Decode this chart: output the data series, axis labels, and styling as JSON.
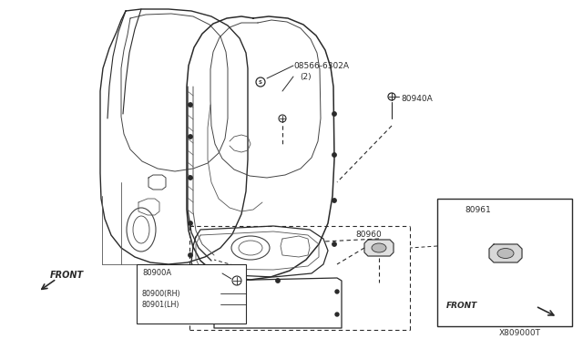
{
  "bg_color": "#ffffff",
  "fig_width": 6.4,
  "fig_height": 3.72,
  "dpi": 100,
  "line_color": "#2a2a2a",
  "diagram_code": "X809000T",
  "part_08566": "08566-6302A",
  "part_08566_qty": "(2)",
  "part_80940A": "80940A",
  "part_80960": "80960",
  "part_80961": "80961",
  "part_80900A": "80900A",
  "part_80900RH": "80900(RH)",
  "part_80901LH": "80901(LH)",
  "front_label": "FRONT"
}
